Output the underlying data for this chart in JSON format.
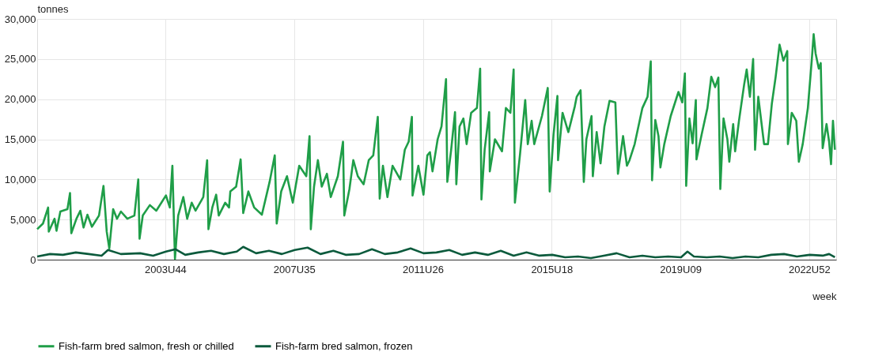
{
  "chart_data": {
    "type": "line",
    "ylabel": "tonnes",
    "xlabel": "week",
    "xlim": [
      "2000-01-03",
      "2023-10-16"
    ],
    "xticks": [
      {
        "value": "2003-10-27",
        "label": "2003U44"
      },
      {
        "value": "2007-08-27",
        "label": "2007U35"
      },
      {
        "value": "2011-06-27",
        "label": "2011U26"
      },
      {
        "value": "2015-04-27",
        "label": "2015U18"
      },
      {
        "value": "2019-02-25",
        "label": "2019U09"
      },
      {
        "value": "2022-12-26",
        "label": "2022U52"
      }
    ],
    "ylim": [
      0,
      30000
    ],
    "yticks": [
      0,
      {
        "value": 5000,
        "label": "5,000"
      },
      {
        "value": 10000,
        "label": "10,000"
      },
      {
        "value": 15000,
        "label": "15,000"
      },
      {
        "value": 20000,
        "label": "20,000"
      },
      {
        "value": 25000,
        "label": "25,000"
      },
      {
        "value": 30000,
        "label": "30,000"
      }
    ],
    "grid": true,
    "legend": "bottom",
    "series": [
      {
        "name": "Fish-farm bred salmon, fresh or chilled",
        "color": "#1f9e48",
        "x": [
          "2000-01-03",
          "2000-03-06",
          "2000-05-01",
          "2000-05-08",
          "2000-07-10",
          "2000-07-31",
          "2000-09-11",
          "2000-11-27",
          "2000-12-25",
          "2001-01-08",
          "2001-03-05",
          "2001-04-16",
          "2001-05-21",
          "2001-07-02",
          "2001-08-20",
          "2001-11-05",
          "2001-12-24",
          "2002-01-28",
          "2002-02-25",
          "2002-04-08",
          "2002-05-20",
          "2002-07-01",
          "2002-09-09",
          "2002-11-25",
          "2003-01-06",
          "2003-01-20",
          "2003-02-24",
          "2003-05-12",
          "2003-07-21",
          "2003-11-03",
          "2003-12-15",
          "2004-01-12",
          "2004-02-09",
          "2004-03-15",
          "2004-05-10",
          "2004-06-21",
          "2004-08-09",
          "2004-09-20",
          "2004-12-13",
          "2005-01-24",
          "2005-02-07",
          "2005-03-21",
          "2005-05-02",
          "2005-05-30",
          "2005-08-08",
          "2005-09-19",
          "2005-10-03",
          "2005-12-05",
          "2006-01-23",
          "2006-02-20",
          "2006-04-17",
          "2006-06-19",
          "2006-09-11",
          "2006-12-04",
          "2007-01-29",
          "2007-02-19",
          "2007-04-09",
          "2007-06-11",
          "2007-08-13",
          "2007-10-22",
          "2008-01-07",
          "2008-02-11",
          "2008-02-25",
          "2008-03-31",
          "2008-05-12",
          "2008-06-23",
          "2008-08-18",
          "2008-09-29",
          "2008-12-15",
          "2009-02-09",
          "2009-02-23",
          "2009-04-20",
          "2009-06-01",
          "2009-07-20",
          "2009-09-21",
          "2009-11-16",
          "2010-01-04",
          "2010-02-22",
          "2010-03-15",
          "2010-04-19",
          "2010-06-07",
          "2010-08-02",
          "2010-10-25",
          "2010-12-13",
          "2011-01-24",
          "2011-02-28",
          "2011-03-07",
          "2011-05-09",
          "2011-07-04",
          "2011-08-15",
          "2011-09-12",
          "2011-10-10",
          "2011-12-05",
          "2012-01-16",
          "2012-03-05",
          "2012-03-19",
          "2012-04-30",
          "2012-06-11",
          "2012-06-25",
          "2012-07-30",
          "2012-09-10",
          "2012-10-15",
          "2012-12-03",
          "2013-02-04",
          "2013-03-11",
          "2013-03-25",
          "2013-04-29",
          "2013-06-17",
          "2013-06-24",
          "2013-08-19",
          "2013-11-04",
          "2013-12-16",
          "2014-02-03",
          "2014-03-10",
          "2014-03-24",
          "2014-05-19",
          "2014-07-14",
          "2014-08-11",
          "2014-09-22",
          "2014-10-20",
          "2015-01-12",
          "2015-03-16",
          "2015-04-06",
          "2015-05-18",
          "2015-06-29",
          "2015-07-06",
          "2015-08-24",
          "2015-10-26",
          "2016-01-04",
          "2016-01-25",
          "2016-03-07",
          "2016-04-11",
          "2016-05-09",
          "2016-07-04",
          "2016-07-18",
          "2016-08-29",
          "2016-10-10",
          "2016-11-21",
          "2017-01-16",
          "2017-03-20",
          "2017-04-17",
          "2017-06-12",
          "2017-07-24",
          "2017-08-21",
          "2017-10-16",
          "2018-01-08",
          "2018-03-05",
          "2018-04-09",
          "2018-04-23",
          "2018-05-28",
          "2018-07-02",
          "2018-07-23",
          "2018-09-03",
          "2018-11-12",
          "2019-02-04",
          "2019-03-18",
          "2019-04-15",
          "2019-04-29",
          "2019-06-03",
          "2019-07-08",
          "2019-08-12",
          "2019-08-19",
          "2019-10-14",
          "2019-12-16",
          "2020-01-27",
          "2020-03-09",
          "2020-04-13",
          "2020-05-04",
          "2020-06-08",
          "2020-07-20",
          "2020-08-10",
          "2020-09-21",
          "2020-10-12",
          "2020-11-23",
          "2021-01-18",
          "2021-02-15",
          "2021-03-22",
          "2021-04-26",
          "2021-05-17",
          "2021-06-21",
          "2021-08-23",
          "2021-10-04",
          "2021-11-15",
          "2021-12-27",
          "2022-02-07",
          "2022-03-21",
          "2022-05-02",
          "2022-05-09",
          "2022-06-20",
          "2022-08-08",
          "2022-09-05",
          "2022-10-17",
          "2022-12-12",
          "2023-01-23",
          "2023-02-13",
          "2023-03-06",
          "2023-04-10",
          "2023-05-01",
          "2023-05-22",
          "2023-07-03",
          "2023-07-31",
          "2023-08-21",
          "2023-09-11",
          "2023-10-02"
        ],
        "values": [
          3800,
          4500,
          6500,
          3500,
          5100,
          3600,
          6000,
          6300,
          8300,
          3300,
          5100,
          6100,
          4000,
          5600,
          4100,
          5500,
          9200,
          3500,
          1400,
          6300,
          5100,
          6000,
          5100,
          5500,
          10000,
          2600,
          5500,
          6800,
          6100,
          8000,
          6500,
          11700,
          100,
          5500,
          7800,
          5100,
          7100,
          6100,
          7800,
          12400,
          3800,
          6500,
          8100,
          5500,
          7100,
          6500,
          8500,
          9100,
          12500,
          5800,
          8500,
          6500,
          5600,
          9700,
          13000,
          4500,
          8500,
          10400,
          7100,
          11700,
          10400,
          15400,
          3800,
          9100,
          12400,
          9100,
          10700,
          7800,
          10400,
          14700,
          5500,
          8800,
          12400,
          10400,
          9400,
          12400,
          13000,
          17800,
          7600,
          11700,
          7800,
          11700,
          10000,
          13700,
          14700,
          17800,
          8000,
          11700,
          8100,
          13000,
          13400,
          11000,
          15000,
          16600,
          22500,
          9700,
          13700,
          18400,
          9400,
          16600,
          17600,
          14400,
          18300,
          18900,
          23800,
          7500,
          13700,
          18400,
          11000,
          15000,
          13500,
          18900,
          18300,
          23700,
          7100,
          13200,
          19900,
          14400,
          17300,
          14400,
          17900,
          21400,
          8500,
          15600,
          20400,
          12400,
          18300,
          15900,
          19100,
          20300,
          21100,
          9700,
          15000,
          17900,
          10400,
          15900,
          12000,
          16600,
          19800,
          19600,
          10700,
          15400,
          11700,
          12400,
          14400,
          18900,
          20300,
          24700,
          9900,
          17400,
          15400,
          11500,
          14400,
          17900,
          20900,
          19600,
          23200,
          9200,
          17600,
          14500,
          19900,
          12500,
          15600,
          18900,
          22800,
          21500,
          22700,
          8800,
          17600,
          15000,
          12200,
          16900,
          13500,
          17300,
          21800,
          23700,
          20300,
          25000,
          13700,
          20300,
          14400,
          14400,
          19400,
          22800,
          26800,
          24800,
          26000,
          14400,
          18300,
          17300,
          12200,
          14400,
          18900,
          24800,
          28100,
          25700,
          23800,
          24500,
          13900,
          16900,
          14700,
          11900,
          17300,
          13700
        ]
      },
      {
        "name": "Fish-farm bred salmon, frozen",
        "color": "#0b5a3c",
        "x": [
          "2000-01-03",
          "2000-05-22",
          "2000-10-09",
          "2001-02-26",
          "2001-07-16",
          "2001-12-03",
          "2002-02-11",
          "2002-07-01",
          "2003-01-27",
          "2003-06-16",
          "2003-11-03",
          "2004-02-16",
          "2004-05-31",
          "2004-10-18",
          "2005-03-07",
          "2005-07-25",
          "2005-12-12",
          "2006-02-20",
          "2006-07-10",
          "2006-11-27",
          "2007-04-16",
          "2007-09-03",
          "2008-01-21",
          "2008-06-09",
          "2008-10-27",
          "2009-03-16",
          "2009-08-03",
          "2009-12-21",
          "2010-05-10",
          "2010-09-27",
          "2011-02-14",
          "2011-07-04",
          "2011-11-21",
          "2012-04-09",
          "2012-08-27",
          "2013-01-14",
          "2013-06-03",
          "2013-10-21",
          "2014-03-10",
          "2014-07-28",
          "2014-12-15",
          "2015-05-04",
          "2015-09-21",
          "2016-02-08",
          "2016-06-27",
          "2016-11-14",
          "2017-04-03",
          "2017-08-21",
          "2018-01-08",
          "2018-05-28",
          "2018-10-15",
          "2019-03-04",
          "2019-05-13",
          "2019-07-22",
          "2019-12-09",
          "2020-04-27",
          "2020-09-14",
          "2021-02-01",
          "2021-06-21",
          "2021-11-08",
          "2022-03-28",
          "2022-08-15",
          "2023-01-02",
          "2023-05-22",
          "2023-07-31",
          "2023-10-02"
        ],
        "values": [
          400,
          700,
          600,
          900,
          700,
          500,
          1200,
          700,
          800,
          500,
          1000,
          1300,
          600,
          900,
          1100,
          700,
          1000,
          1600,
          800,
          1100,
          700,
          1200,
          1500,
          700,
          1100,
          600,
          700,
          1300,
          700,
          900,
          1400,
          800,
          900,
          1200,
          600,
          900,
          600,
          1100,
          500,
          900,
          500,
          600,
          300,
          400,
          200,
          500,
          800,
          300,
          500,
          300,
          400,
          300,
          1000,
          400,
          300,
          400,
          200,
          400,
          300,
          600,
          700,
          400,
          600,
          500,
          700,
          300
        ]
      }
    ]
  }
}
